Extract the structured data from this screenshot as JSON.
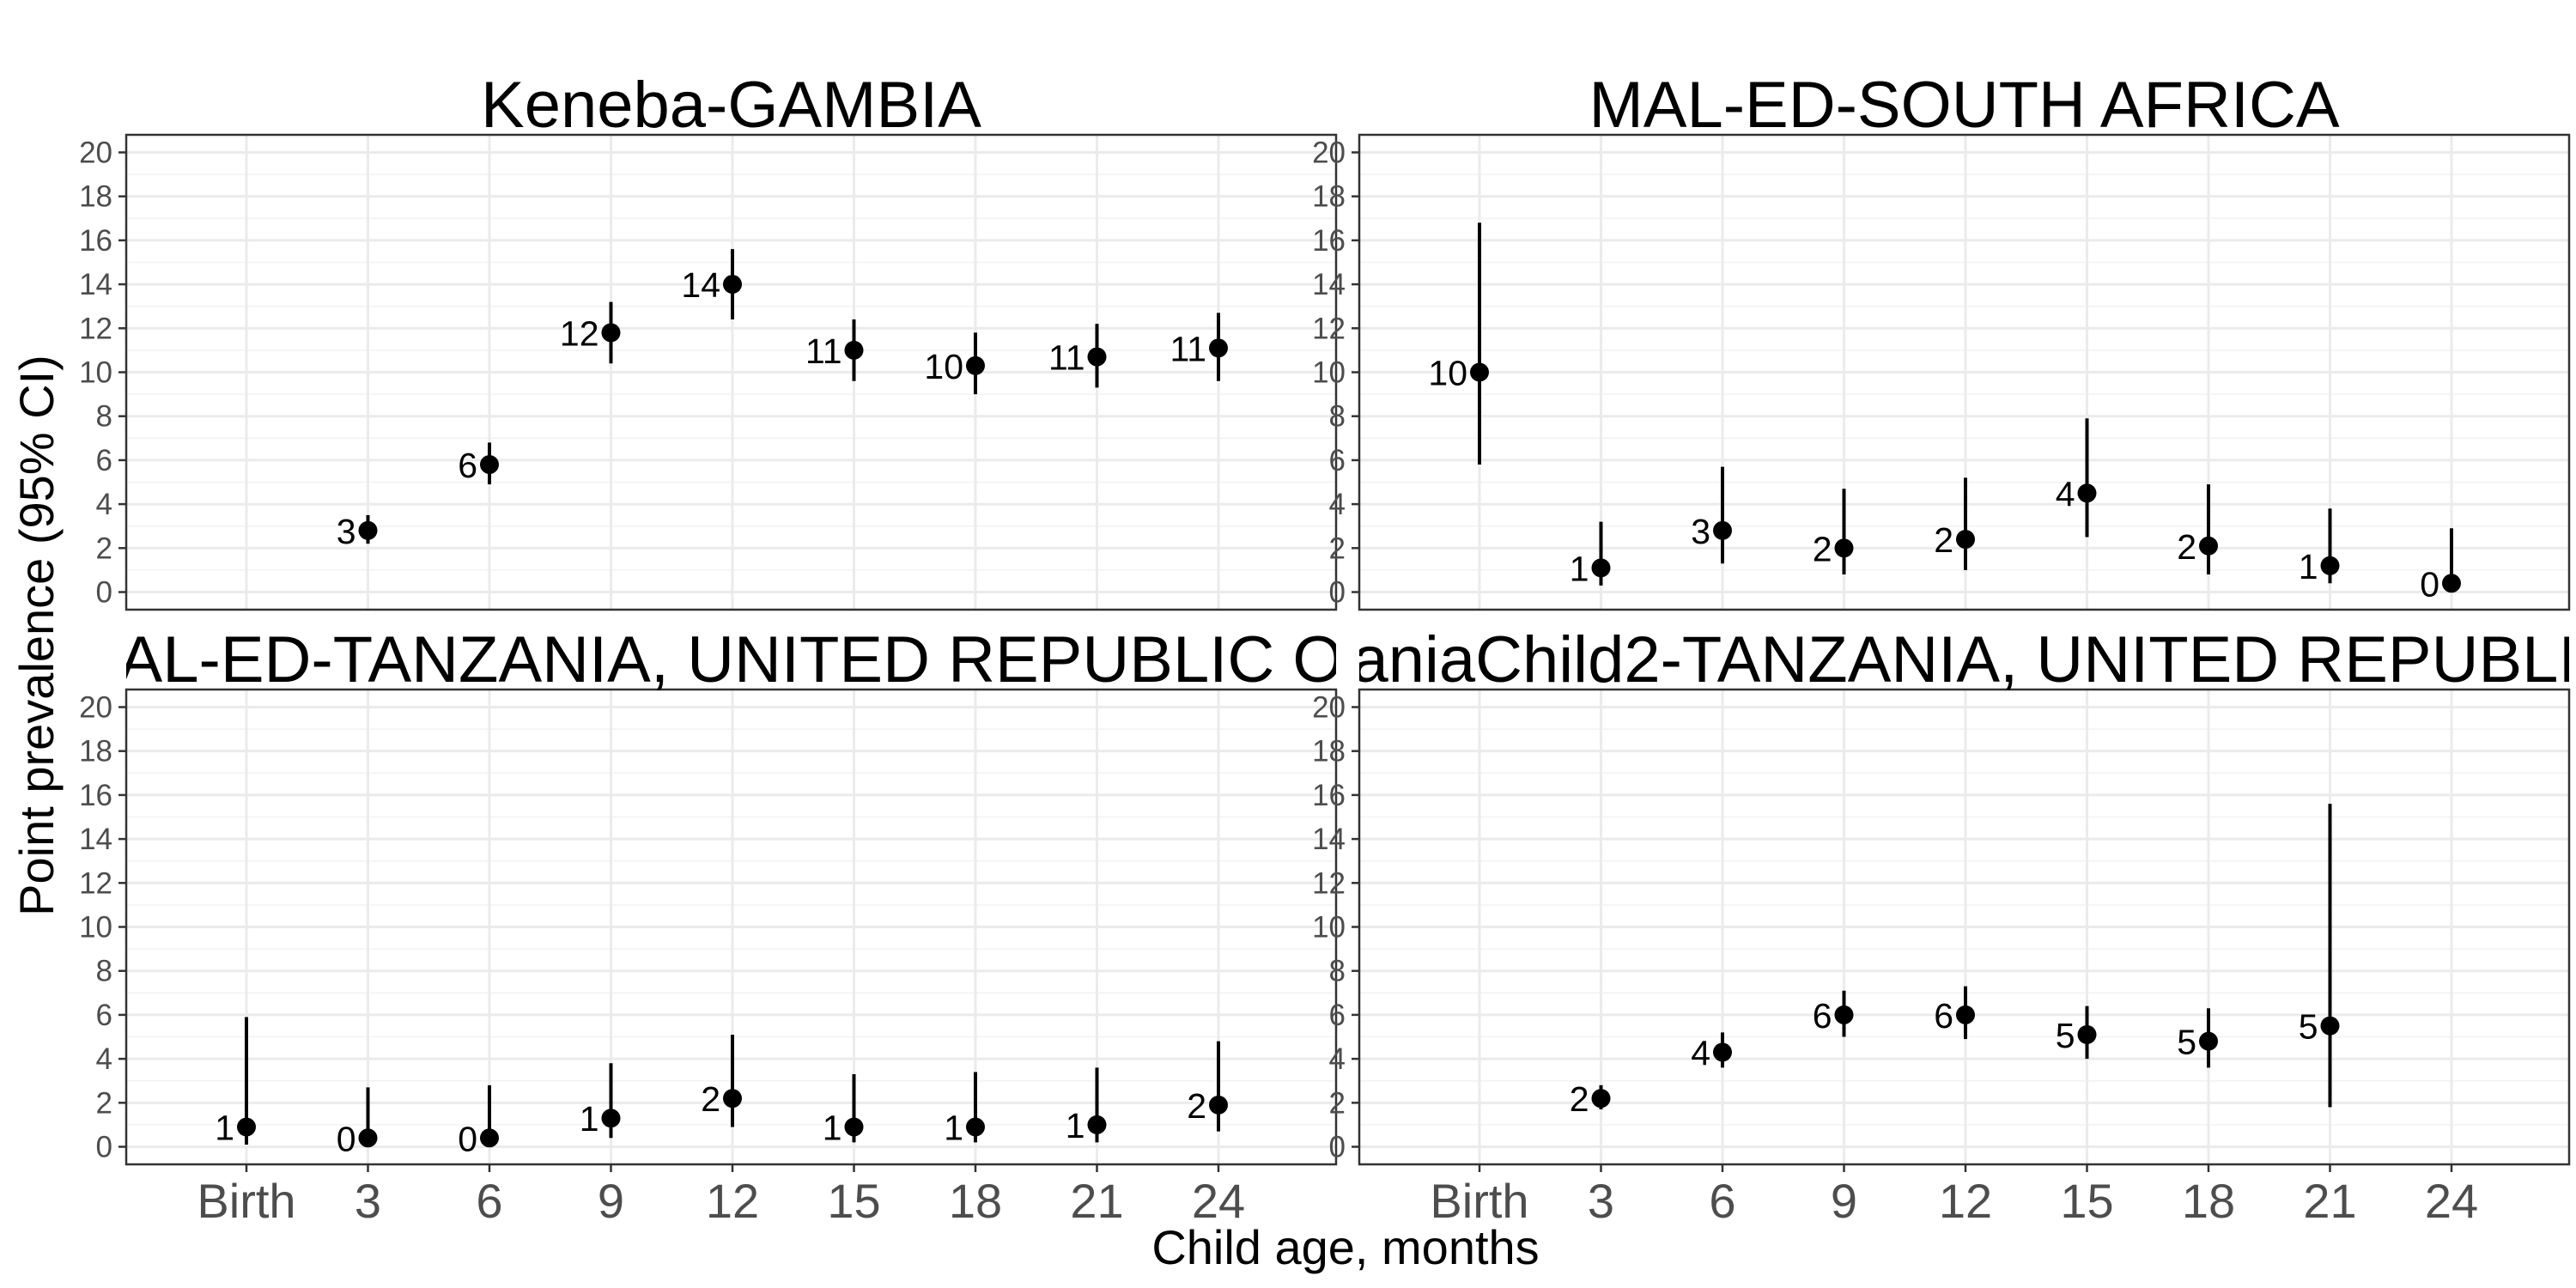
{
  "chart_data": {
    "type": "scatter",
    "ylabel": "Point prevalence (95% CI)",
    "xlabel": "Child age, months",
    "categories": [
      "Birth",
      "3",
      "6",
      "9",
      "12",
      "15",
      "18",
      "21",
      "24"
    ],
    "yticks": [
      0,
      2,
      4,
      6,
      8,
      10,
      12,
      14,
      16,
      18,
      20
    ],
    "ylim": [
      -0.8,
      20.8
    ],
    "grid": true,
    "marker_color": "#000000",
    "panels": [
      {
        "title": "Keneba-GAMBIA",
        "points": [
          {
            "x": "3",
            "y": 2.8,
            "lo": 2.2,
            "hi": 3.5,
            "label": "3"
          },
          {
            "x": "6",
            "y": 5.8,
            "lo": 4.9,
            "hi": 6.8,
            "label": "6"
          },
          {
            "x": "9",
            "y": 11.8,
            "lo": 10.4,
            "hi": 13.2,
            "label": "12"
          },
          {
            "x": "12",
            "y": 14.0,
            "lo": 12.4,
            "hi": 15.6,
            "label": "14"
          },
          {
            "x": "15",
            "y": 11.0,
            "lo": 9.6,
            "hi": 12.4,
            "label": "11"
          },
          {
            "x": "18",
            "y": 10.3,
            "lo": 9.0,
            "hi": 11.8,
            "label": "10"
          },
          {
            "x": "21",
            "y": 10.7,
            "lo": 9.3,
            "hi": 12.2,
            "label": "11"
          },
          {
            "x": "24",
            "y": 11.1,
            "lo": 9.6,
            "hi": 12.7,
            "label": "11"
          }
        ]
      },
      {
        "title": "MAL-ED-SOUTH AFRICA",
        "points": [
          {
            "x": "Birth",
            "y": 10.0,
            "lo": 5.8,
            "hi": 16.8,
            "label": "10"
          },
          {
            "x": "3",
            "y": 1.1,
            "lo": 0.3,
            "hi": 3.2,
            "label": "1"
          },
          {
            "x": "6",
            "y": 2.8,
            "lo": 1.3,
            "hi": 5.7,
            "label": "3"
          },
          {
            "x": "9",
            "y": 2.0,
            "lo": 0.8,
            "hi": 4.7,
            "label": "2"
          },
          {
            "x": "12",
            "y": 2.4,
            "lo": 1.0,
            "hi": 5.2,
            "label": "2"
          },
          {
            "x": "15",
            "y": 4.5,
            "lo": 2.5,
            "hi": 7.9,
            "label": "4"
          },
          {
            "x": "18",
            "y": 2.1,
            "lo": 0.8,
            "hi": 4.9,
            "label": "2"
          },
          {
            "x": "21",
            "y": 1.2,
            "lo": 0.4,
            "hi": 3.8,
            "label": "1"
          },
          {
            "x": "24",
            "y": 0.4,
            "lo": 0.0,
            "hi": 2.9,
            "label": "0"
          }
        ]
      },
      {
        "title": "AL-ED-TANZANIA, UNITED REPUBLIC O",
        "points": [
          {
            "x": "Birth",
            "y": 0.9,
            "lo": 0.1,
            "hi": 5.9,
            "label": "1"
          },
          {
            "x": "3",
            "y": 0.4,
            "lo": 0.0,
            "hi": 2.7,
            "label": "0"
          },
          {
            "x": "6",
            "y": 0.4,
            "lo": 0.0,
            "hi": 2.8,
            "label": "0"
          },
          {
            "x": "9",
            "y": 1.3,
            "lo": 0.4,
            "hi": 3.8,
            "label": "1"
          },
          {
            "x": "12",
            "y": 2.2,
            "lo": 0.9,
            "hi": 5.1,
            "label": "2"
          },
          {
            "x": "15",
            "y": 0.9,
            "lo": 0.2,
            "hi": 3.3,
            "label": "1"
          },
          {
            "x": "18",
            "y": 0.9,
            "lo": 0.2,
            "hi": 3.4,
            "label": "1"
          },
          {
            "x": "21",
            "y": 1.0,
            "lo": 0.2,
            "hi": 3.6,
            "label": "1"
          },
          {
            "x": "24",
            "y": 1.9,
            "lo": 0.7,
            "hi": 4.8,
            "label": "2"
          }
        ]
      },
      {
        "title": "aniaChild2-TANZANIA, UNITED REPUBLI",
        "points": [
          {
            "x": "3",
            "y": 2.2,
            "lo": 1.7,
            "hi": 2.8,
            "label": "2"
          },
          {
            "x": "6",
            "y": 4.3,
            "lo": 3.6,
            "hi": 5.2,
            "label": "4"
          },
          {
            "x": "9",
            "y": 6.0,
            "lo": 5.0,
            "hi": 7.1,
            "label": "6"
          },
          {
            "x": "12",
            "y": 6.0,
            "lo": 4.9,
            "hi": 7.3,
            "label": "6"
          },
          {
            "x": "15",
            "y": 5.1,
            "lo": 4.0,
            "hi": 6.4,
            "label": "5"
          },
          {
            "x": "18",
            "y": 4.8,
            "lo": 3.6,
            "hi": 6.3,
            "label": "5"
          },
          {
            "x": "21",
            "y": 5.5,
            "lo": 1.8,
            "hi": 15.6,
            "label": "5"
          }
        ]
      }
    ]
  }
}
